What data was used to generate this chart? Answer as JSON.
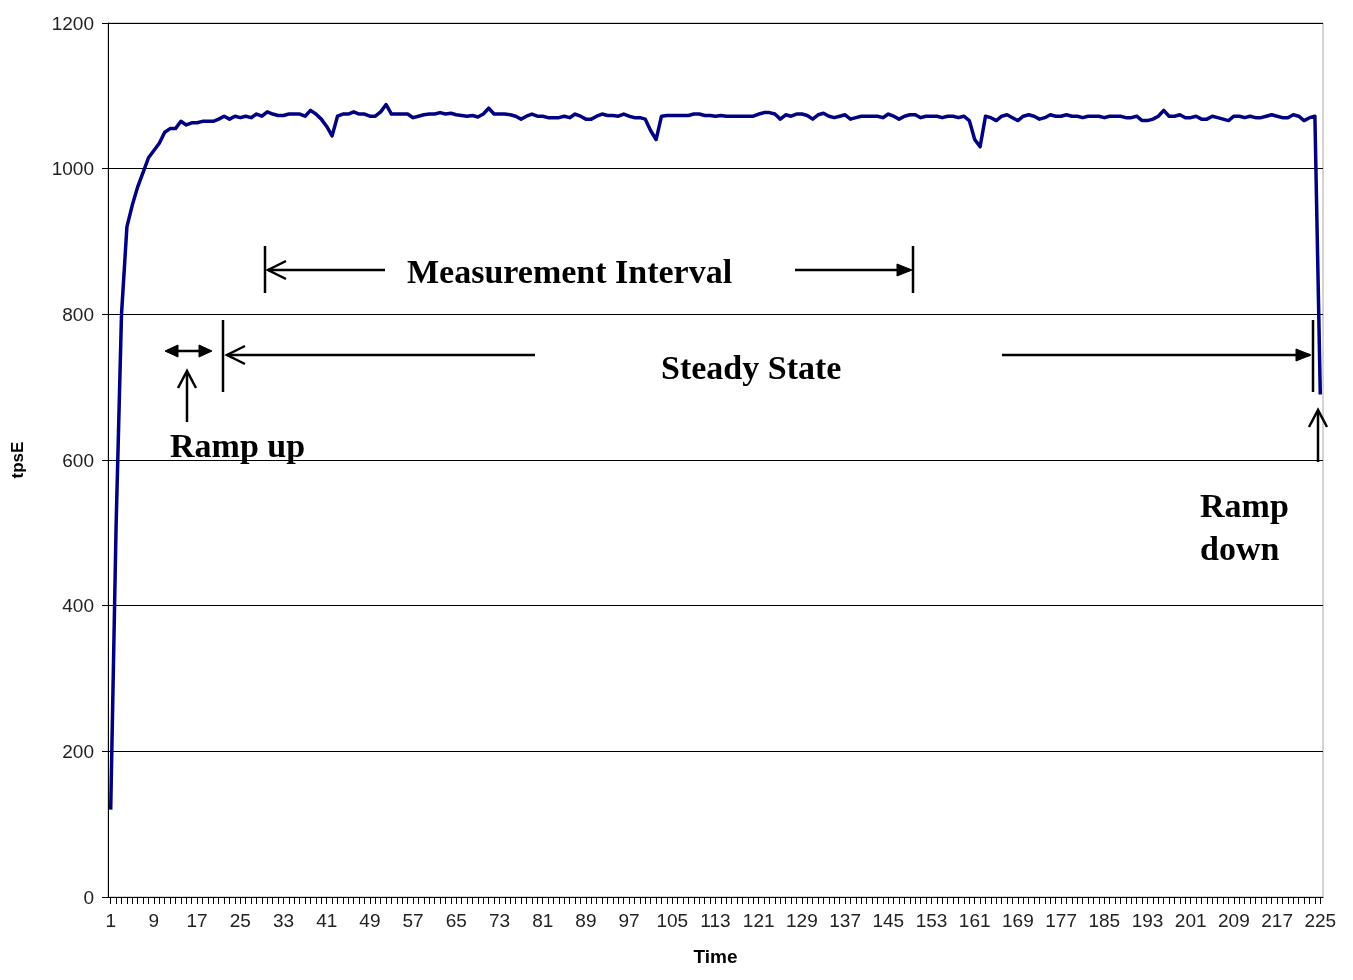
{
  "chart_data": {
    "type": "line",
    "xlabel": "Time",
    "ylabel": "tpsE",
    "categories": [
      "1",
      null,
      null,
      null,
      null,
      null,
      null,
      null,
      "9",
      null,
      null,
      null,
      null,
      null,
      null,
      null,
      "17",
      null,
      null,
      null,
      null,
      null,
      null,
      null,
      "25",
      null,
      null,
      null,
      null,
      null,
      null,
      null,
      "33",
      null,
      null,
      null,
      null,
      null,
      null,
      null,
      "41",
      null,
      null,
      null,
      null,
      null,
      null,
      null,
      "49",
      null,
      null,
      null,
      null,
      null,
      null,
      null,
      "57",
      null,
      null,
      null,
      null,
      null,
      null,
      null,
      "65",
      null,
      null,
      null,
      null,
      null,
      null,
      null,
      "73",
      null,
      null,
      null,
      null,
      null,
      null,
      null,
      "81",
      null,
      null,
      null,
      null,
      null,
      null,
      null,
      "89",
      null,
      null,
      null,
      null,
      null,
      null,
      null,
      "97",
      null,
      null,
      null,
      null,
      null,
      null,
      null,
      "105",
      null,
      null,
      null,
      null,
      null,
      null,
      null,
      "113",
      null,
      null,
      null,
      null,
      null,
      null,
      null,
      "121",
      null,
      null,
      null,
      null,
      null,
      null,
      null,
      "129",
      null,
      null,
      null,
      null,
      null,
      null,
      null,
      "137",
      null,
      null,
      null,
      null,
      null,
      null,
      null,
      "145",
      null,
      null,
      null,
      null,
      null,
      null,
      null,
      "153",
      null,
      null,
      null,
      null,
      null,
      null,
      null,
      "161",
      null,
      null,
      null,
      null,
      null,
      null,
      null,
      "169",
      null,
      null,
      null,
      null,
      null,
      null,
      null,
      "177",
      null,
      null,
      null,
      null,
      null,
      null,
      null,
      "185",
      null,
      null,
      null,
      null,
      null,
      null,
      null,
      "193",
      null,
      null,
      null,
      null,
      null,
      null,
      null,
      "201",
      null,
      null,
      null,
      null,
      null,
      null,
      null,
      "209",
      null,
      null,
      null,
      null,
      null,
      null,
      null,
      "217",
      null,
      null,
      null,
      null,
      null,
      null,
      null,
      "225"
    ],
    "series": [
      {
        "color": "#000080",
        "values": [
          120,
          510,
          800,
          920,
          950,
          975,
          995,
          1015,
          1025,
          1035,
          1050,
          1055,
          1055,
          1065,
          1060,
          1063,
          1063,
          1065,
          1065,
          1065,
          1068,
          1072,
          1068,
          1072,
          1070,
          1072,
          1070,
          1075,
          1072,
          1078,
          1075,
          1073,
          1073,
          1075,
          1075,
          1075,
          1072,
          1080,
          1075,
          1068,
          1058,
          1045,
          1072,
          1075,
          1075,
          1078,
          1075,
          1075,
          1072,
          1072,
          1078,
          1088,
          1075,
          1075,
          1075,
          1075,
          1070,
          1072,
          1074,
          1075,
          1075,
          1077,
          1075,
          1076,
          1074,
          1073,
          1072,
          1073,
          1071,
          1075,
          1083,
          1075,
          1075,
          1075,
          1074,
          1072,
          1068,
          1072,
          1075,
          1072,
          1072,
          1070,
          1070,
          1070,
          1072,
          1070,
          1075,
          1072,
          1068,
          1068,
          1072,
          1075,
          1073,
          1073,
          1072,
          1075,
          1072,
          1070,
          1070,
          1068,
          1052,
          1040,
          1072,
          1073,
          1073,
          1073,
          1073,
          1073,
          1075,
          1075,
          1073,
          1073,
          1072,
          1073,
          1072,
          1072,
          1072,
          1072,
          1072,
          1072,
          1075,
          1077,
          1077,
          1075,
          1068,
          1074,
          1072,
          1075,
          1075,
          1073,
          1068,
          1074,
          1076,
          1072,
          1070,
          1072,
          1074,
          1068,
          1070,
          1072,
          1072,
          1072,
          1072,
          1070,
          1075,
          1072,
          1068,
          1072,
          1074,
          1074,
          1070,
          1072,
          1072,
          1072,
          1070,
          1072,
          1072,
          1070,
          1072,
          1066,
          1040,
          1030,
          1072,
          1070,
          1066,
          1072,
          1074,
          1070,
          1066,
          1072,
          1074,
          1072,
          1068,
          1070,
          1074,
          1072,
          1072,
          1074,
          1072,
          1072,
          1070,
          1072,
          1072,
          1072,
          1070,
          1072,
          1072,
          1072,
          1070,
          1070,
          1072,
          1066,
          1066,
          1068,
          1072,
          1080,
          1072,
          1072,
          1074,
          1070,
          1070,
          1072,
          1068,
          1068,
          1072,
          1070,
          1068,
          1066,
          1072,
          1072,
          1070,
          1072,
          1070,
          1070,
          1072,
          1074,
          1072,
          1070,
          1070,
          1074,
          1072,
          1066,
          1070,
          1072,
          690
        ]
      }
    ],
    "ylim": [
      0,
      1200
    ],
    "yticks": [
      0,
      200,
      400,
      600,
      800,
      1000,
      1200
    ],
    "grid": "y",
    "marker": "none",
    "line_style": "solid",
    "annotations": [
      "Measurement Interval",
      "Steady State",
      "Ramp up",
      "Ramp down"
    ]
  }
}
